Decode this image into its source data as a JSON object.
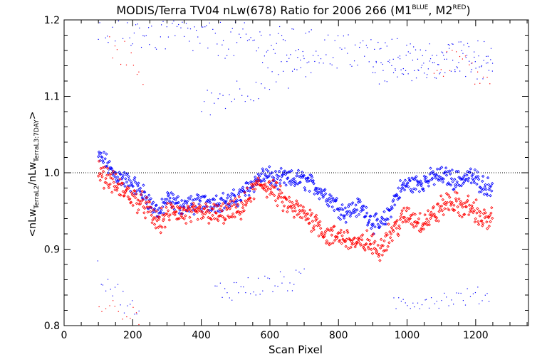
{
  "chart_data": {
    "type": "scatter",
    "title": {
      "prefix": "MODIS/Terra TV04 nLw(678) Ratio for 2006 266 (M1",
      "sup1": "BLUE",
      "mid": ", M2",
      "sup2": "RED",
      "suffix": ")"
    },
    "xlabel": "Scan Pixel",
    "ylabel": {
      "open": "<nLw",
      "sub1": "TerraL2",
      "slash": "/nLw",
      "sub2": "TerraL3:7DAY",
      "close": ">"
    },
    "xlim": [
      0,
      1354
    ],
    "ylim": [
      0.8,
      1.2
    ],
    "x_ticks": [
      0,
      200,
      400,
      600,
      800,
      1000,
      1200
    ],
    "x_tick_labels": [
      "0",
      "200",
      "400",
      "600",
      "800",
      "1000",
      "1200"
    ],
    "y_ticks": [
      0.8,
      0.9,
      1.0,
      1.1,
      1.2
    ],
    "y_tick_labels": [
      "0.8",
      "0.9",
      "1.0",
      "1.1",
      "1.2"
    ],
    "reference_line": 1.0,
    "grid": false,
    "series": [
      {
        "color": "#0000ff",
        "main": {
          "x": [
            100,
            120,
            140,
            160,
            180,
            200,
            220,
            240,
            260,
            280,
            300,
            320,
            340,
            360,
            380,
            400,
            420,
            440,
            460,
            480,
            500,
            520,
            540,
            560,
            580,
            600,
            620,
            640,
            660,
            680,
            700,
            720,
            740,
            760,
            780,
            800,
            820,
            840,
            860,
            880,
            900,
            920,
            940,
            960,
            980,
            1000,
            1020,
            1040,
            1060,
            1080,
            1100,
            1120,
            1140,
            1160,
            1180,
            1200,
            1220,
            1240,
            1250
          ],
          "y": [
            1.02,
            1.015,
            1.0,
            0.995,
            0.99,
            0.985,
            0.978,
            0.968,
            0.955,
            0.948,
            0.965,
            0.962,
            0.957,
            0.958,
            0.958,
            0.96,
            0.962,
            0.962,
            0.962,
            0.962,
            0.966,
            0.972,
            0.982,
            0.99,
            0.996,
            0.995,
            0.99,
            0.992,
            0.99,
            0.992,
            0.99,
            0.985,
            0.98,
            0.972,
            0.965,
            0.955,
            0.948,
            0.952,
            0.955,
            0.948,
            0.935,
            0.93,
            0.94,
            0.962,
            0.978,
            0.985,
            0.985,
            0.988,
            0.99,
            0.995,
            0.995,
            0.995,
            0.99,
            0.992,
            0.995,
            0.992,
            0.985,
            0.98,
            0.99
          ],
          "spread": 0.01
        },
        "outliers": [
          {
            "x": [
              100,
              1250
            ],
            "y": [
              1.19,
              1.14
            ],
            "step": 5,
            "amp": 0.025
          },
          {
            "x": [
              400,
              720
            ],
            "y": [
              1.09,
              1.14
            ],
            "step": 8,
            "amp": 0.02
          },
          {
            "x": [
              900,
              1250
            ],
            "y": [
              1.13,
              1.16
            ],
            "step": 6,
            "amp": 0.02
          },
          {
            "x": [
              100,
              220
            ],
            "y": [
              0.87,
              0.81
            ],
            "step": 7,
            "amp": 0.015
          },
          {
            "x": [
              440,
              700
            ],
            "y": [
              0.845,
              0.86
            ],
            "step": 7,
            "amp": 0.015
          },
          {
            "x": [
              960,
              1240
            ],
            "y": [
              0.83,
              0.84
            ],
            "step": 7,
            "amp": 0.012
          }
        ]
      },
      {
        "color": "#ff0000",
        "main": {
          "x": [
            100,
            120,
            140,
            160,
            180,
            200,
            220,
            240,
            260,
            280,
            300,
            320,
            340,
            360,
            380,
            400,
            420,
            440,
            460,
            480,
            500,
            520,
            540,
            560,
            580,
            600,
            620,
            640,
            660,
            680,
            700,
            720,
            740,
            760,
            780,
            800,
            820,
            840,
            860,
            880,
            900,
            920,
            940,
            960,
            980,
            1000,
            1020,
            1040,
            1060,
            1080,
            1100,
            1120,
            1140,
            1160,
            1180,
            1200,
            1220,
            1240,
            1250
          ],
          "y": [
            1.005,
            0.995,
            0.988,
            0.98,
            0.975,
            0.968,
            0.962,
            0.955,
            0.94,
            0.935,
            0.945,
            0.952,
            0.947,
            0.945,
            0.945,
            0.947,
            0.948,
            0.945,
            0.945,
            0.948,
            0.95,
            0.955,
            0.968,
            0.982,
            0.985,
            0.98,
            0.972,
            0.962,
            0.955,
            0.95,
            0.945,
            0.94,
            0.935,
            0.92,
            0.915,
            0.918,
            0.915,
            0.91,
            0.905,
            0.91,
            0.905,
            0.9,
            0.915,
            0.925,
            0.935,
            0.945,
            0.94,
            0.935,
            0.94,
            0.945,
            0.955,
            0.962,
            0.96,
            0.955,
            0.955,
            0.95,
            0.94,
            0.935,
            0.945
          ],
          "spread": 0.012
        },
        "outliers": [
          {
            "x": [
              130,
              230
            ],
            "y": [
              1.17,
              1.13
            ],
            "step": 9,
            "amp": 0.02
          },
          {
            "x": [
              1080,
              1250
            ],
            "y": [
              1.15,
              1.12
            ],
            "step": 9,
            "amp": 0.02
          },
          {
            "x": [
              100,
              230
            ],
            "y": [
              0.83,
              0.81
            ],
            "step": 10,
            "amp": 0.012
          }
        ]
      }
    ]
  }
}
